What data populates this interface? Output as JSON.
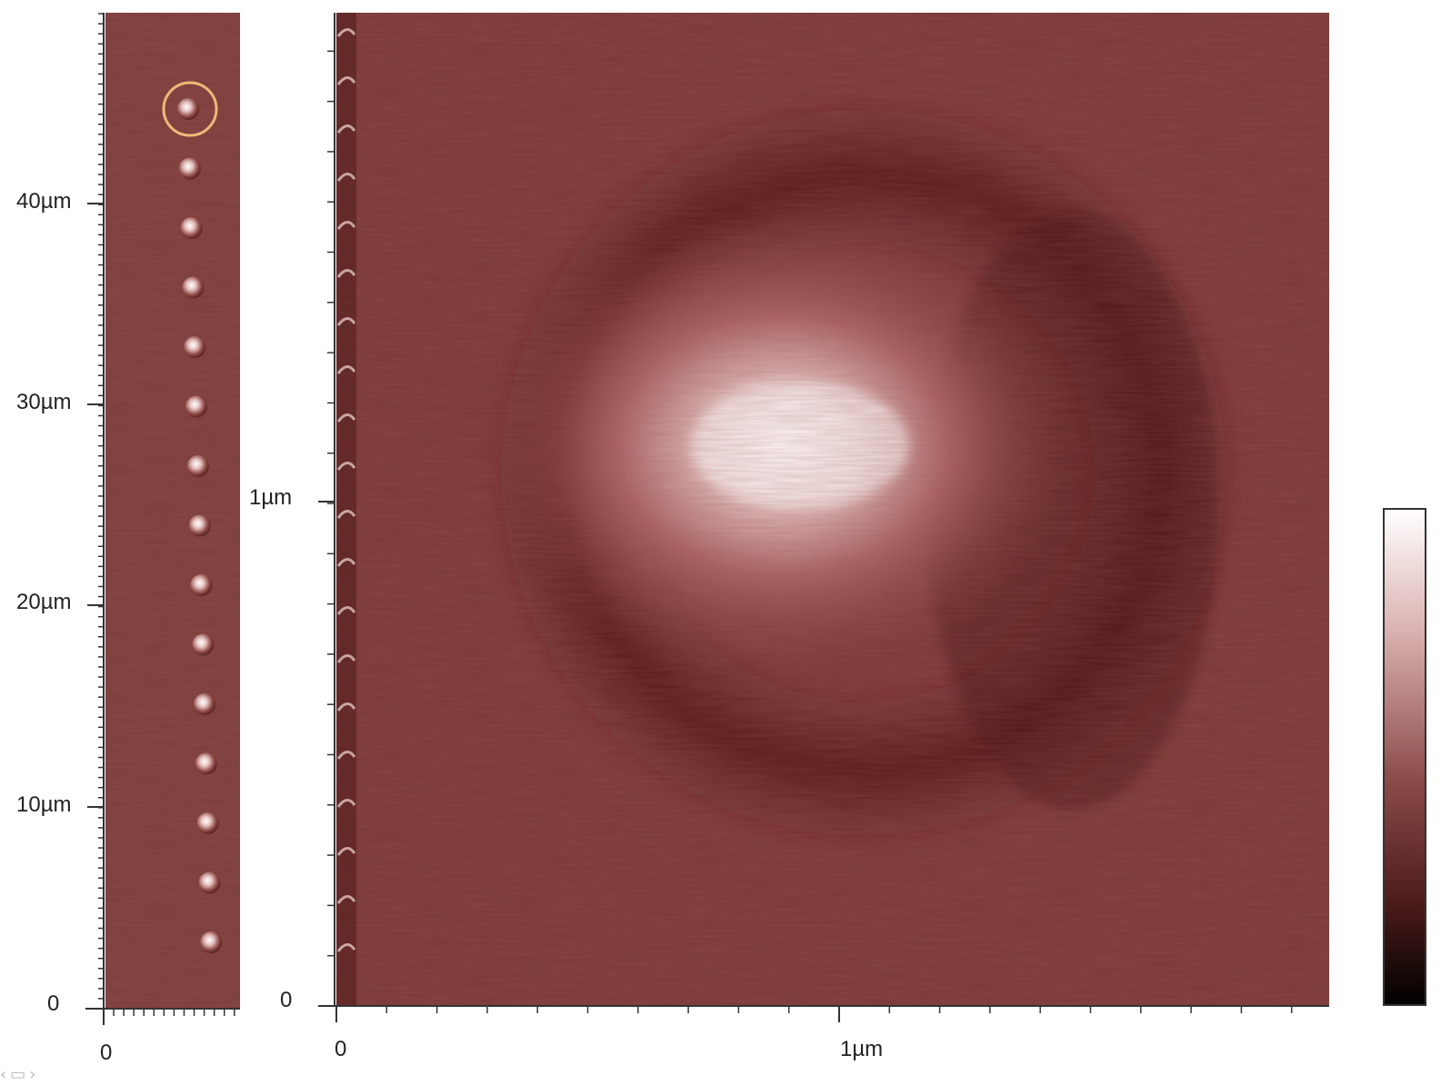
{
  "left_panel": {
    "y_axis_labels": [
      "0",
      "10µm",
      "20µm",
      "30µm",
      "40µm"
    ],
    "x_axis_labels": [
      "0"
    ],
    "bump_count": 15,
    "highlighted_bump_index": 0
  },
  "main_panel": {
    "y_axis_labels": [
      "0",
      "1µm"
    ],
    "x_axis_labels": [
      "0",
      "1µm"
    ]
  },
  "colors": {
    "surface": "#7a3a38",
    "highlight_ring": "#f0b878",
    "peak": "#ffffff",
    "colorbar_top": "#ffffff",
    "colorbar_mid": "#8a4a48",
    "colorbar_bottom": "#000000"
  },
  "nav_icons": [
    "prev-icon",
    "page-icon",
    "next-icon"
  ]
}
